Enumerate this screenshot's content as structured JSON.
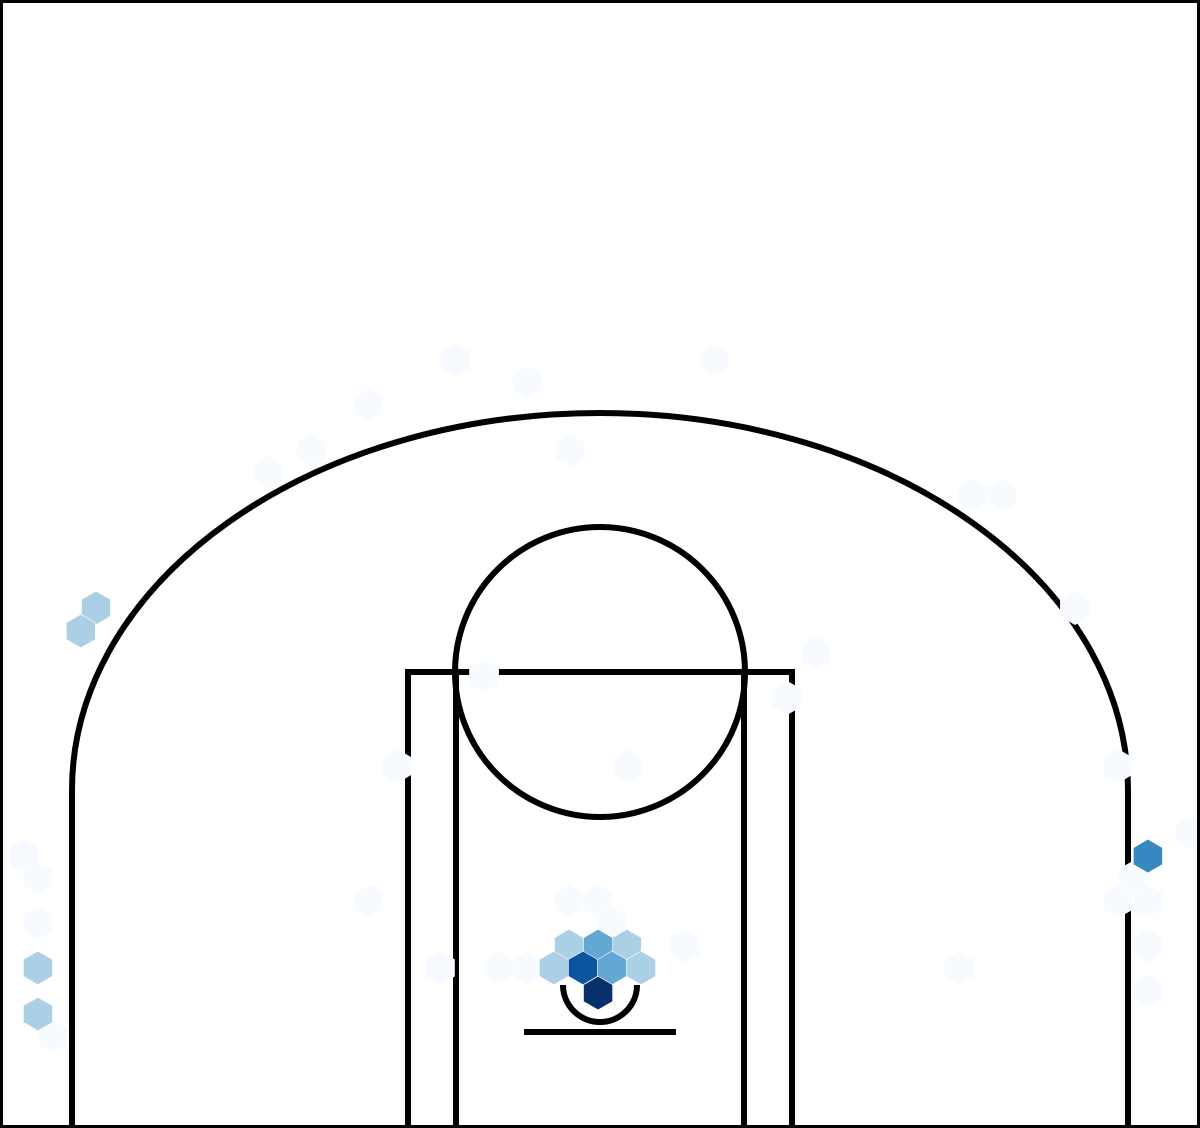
{
  "chart_data": {
    "type": "hexbin",
    "bins": "log",
    "cmap": [
      "#f7fbff",
      "#deebf7",
      "#c6dbef",
      "#9ecae1",
      "#6baed6",
      "#4292c6",
      "#2171b5",
      "#08519c",
      "#08306b"
    ],
    "xlim": [
      -25,
      25
    ],
    "ylim": [
      -5.5,
      41.5
    ],
    "x": [
      -6.04,
      4.75,
      -3.04,
      -9.63,
      -12.04,
      -1.25,
      -13.83,
      15.54,
      16.75,
      19.79,
      9.0,
      -4.83,
      7.79,
      -8.46,
      1.17,
      21.58,
      24.58,
      -24.0,
      -23.42,
      22.21,
      -9.63,
      -1.29,
      -0.08,
      21.58,
      22.83,
      -23.42,
      0.5,
      3.54,
      22.83,
      -6.67,
      -4.25,
      -3.04,
      14.96,
      22.83,
      -22.79,
      -1.29,
      1.12,
      -1.92,
      1.71,
      -21.0,
      -21.63,
      -23.42,
      -23.42,
      -0.08,
      0.5,
      22.83,
      -0.71,
      -0.08
    ],
    "y": [
      26.5,
      26.5,
      25.58,
      24.63,
      22.75,
      22.75,
      21.83,
      20.88,
      20.88,
      16.17,
      14.29,
      13.33,
      12.42,
      9.58,
      9.58,
      9.58,
      6.79,
      5.83,
      4.92,
      4.92,
      3.96,
      3.96,
      3.96,
      3.96,
      3.96,
      3.04,
      3.04,
      2.08,
      2.08,
      1.17,
      1.17,
      1.17,
      1.17,
      0.21,
      -1.67,
      2.08,
      2.08,
      1.17,
      1.17,
      16.17,
      15.21,
      1.17,
      -0.75,
      2.08,
      1.17,
      5.83,
      1.17,
      0.12
    ],
    "values": [
      1,
      1,
      1,
      1,
      1,
      1,
      1,
      1,
      1,
      1,
      1,
      1,
      1,
      1,
      1,
      1,
      1,
      1,
      1,
      1,
      1,
      1,
      1,
      1,
      1,
      1,
      1,
      1,
      1,
      1,
      1,
      1,
      1,
      1,
      1,
      2,
      2,
      2,
      2,
      2,
      2,
      2,
      2,
      3,
      3,
      4,
      6,
      8
    ]
  }
}
